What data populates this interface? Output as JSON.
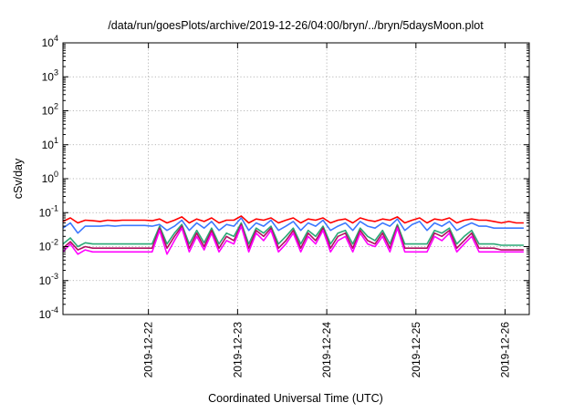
{
  "chart_data": {
    "type": "line",
    "title": "/data/run/goesPlots/archive/2019-12-26/04:00/bryn/../bryn/5daysMoon.plot",
    "xlabel": "Coordinated Universal Time (UTC)",
    "ylabel": "cSv/day",
    "yscale": "log",
    "ylim": [
      0.0001,
      10000
    ],
    "xlim": [
      "2019-12-21T01:00",
      "2019-12-26T06:30"
    ],
    "y_ticks": [
      {
        "value": 0.0001,
        "base": "10",
        "exp": "-4"
      },
      {
        "value": 0.001,
        "base": "10",
        "exp": "-3"
      },
      {
        "value": 0.01,
        "base": "10",
        "exp": "-2"
      },
      {
        "value": 0.1,
        "base": "10",
        "exp": "-1"
      },
      {
        "value": 1,
        "base": "10",
        "exp": "0"
      },
      {
        "value": 10,
        "base": "10",
        "exp": "1"
      },
      {
        "value": 100,
        "base": "10",
        "exp": "2"
      },
      {
        "value": 1000,
        "base": "10",
        "exp": "3"
      },
      {
        "value": 10000,
        "base": "10",
        "exp": "4"
      }
    ],
    "x_ticks": [
      "2019-12-22",
      "2019-12-23",
      "2019-12-24",
      "2019-12-25",
      "2019-12-26"
    ],
    "grid": true,
    "legend": "none",
    "series": [
      {
        "color": "#ff0000",
        "x": [
          "2019-12-21T01:00",
          "2019-12-21T03:00",
          "2019-12-21T05:00",
          "2019-12-21T07:00",
          "2019-12-21T09:00",
          "2019-12-21T11:00",
          "2019-12-21T13:00",
          "2019-12-21T15:00",
          "2019-12-21T17:00",
          "2019-12-21T19:00",
          "2019-12-21T21:00",
          "2019-12-21T23:00",
          "2019-12-22T01:00",
          "2019-12-22T03:00",
          "2019-12-22T05:00",
          "2019-12-22T07:00",
          "2019-12-22T09:00",
          "2019-12-22T11:00",
          "2019-12-22T13:00",
          "2019-12-22T15:00",
          "2019-12-22T17:00",
          "2019-12-22T19:00",
          "2019-12-22T21:00",
          "2019-12-22T23:00",
          "2019-12-23T01:00",
          "2019-12-23T03:00",
          "2019-12-23T05:00",
          "2019-12-23T07:00",
          "2019-12-23T09:00",
          "2019-12-23T11:00",
          "2019-12-23T13:00",
          "2019-12-23T15:00",
          "2019-12-23T17:00",
          "2019-12-23T19:00",
          "2019-12-23T21:00",
          "2019-12-23T23:00",
          "2019-12-24T01:00",
          "2019-12-24T03:00",
          "2019-12-24T05:00",
          "2019-12-24T07:00",
          "2019-12-24T09:00",
          "2019-12-24T11:00",
          "2019-12-24T13:00",
          "2019-12-24T15:00",
          "2019-12-24T17:00",
          "2019-12-24T19:00",
          "2019-12-24T21:00",
          "2019-12-24T23:00",
          "2019-12-25T01:00",
          "2019-12-25T03:00",
          "2019-12-25T05:00",
          "2019-12-25T07:00",
          "2019-12-25T09:00",
          "2019-12-25T11:00",
          "2019-12-25T13:00",
          "2019-12-25T15:00",
          "2019-12-25T17:00",
          "2019-12-25T19:00",
          "2019-12-25T21:00",
          "2019-12-25T23:00",
          "2019-12-26T01:00",
          "2019-12-26T03:00",
          "2019-12-26T05:00"
        ],
        "values": [
          0.055,
          0.07,
          0.05,
          0.06,
          0.058,
          0.055,
          0.06,
          0.058,
          0.06,
          0.06,
          0.06,
          0.06,
          0.058,
          0.065,
          0.05,
          0.06,
          0.075,
          0.05,
          0.065,
          0.055,
          0.07,
          0.05,
          0.06,
          0.06,
          0.08,
          0.05,
          0.065,
          0.06,
          0.07,
          0.05,
          0.06,
          0.07,
          0.05,
          0.065,
          0.06,
          0.07,
          0.05,
          0.06,
          0.065,
          0.05,
          0.07,
          0.06,
          0.055,
          0.065,
          0.06,
          0.075,
          0.05,
          0.06,
          0.07,
          0.05,
          0.065,
          0.06,
          0.07,
          0.05,
          0.06,
          0.065,
          0.06,
          0.06,
          0.055,
          0.05,
          0.055,
          0.05,
          0.05
        ]
      },
      {
        "color": "#3c78ff",
        "x": [
          "2019-12-21T01:00",
          "2019-12-21T03:00",
          "2019-12-21T05:00",
          "2019-12-21T07:00",
          "2019-12-21T09:00",
          "2019-12-21T11:00",
          "2019-12-21T13:00",
          "2019-12-21T15:00",
          "2019-12-21T17:00",
          "2019-12-21T19:00",
          "2019-12-21T21:00",
          "2019-12-21T23:00",
          "2019-12-22T01:00",
          "2019-12-22T03:00",
          "2019-12-22T05:00",
          "2019-12-22T07:00",
          "2019-12-22T09:00",
          "2019-12-22T11:00",
          "2019-12-22T13:00",
          "2019-12-22T15:00",
          "2019-12-22T17:00",
          "2019-12-22T19:00",
          "2019-12-22T21:00",
          "2019-12-22T23:00",
          "2019-12-23T01:00",
          "2019-12-23T03:00",
          "2019-12-23T05:00",
          "2019-12-23T07:00",
          "2019-12-23T09:00",
          "2019-12-23T11:00",
          "2019-12-23T13:00",
          "2019-12-23T15:00",
          "2019-12-23T17:00",
          "2019-12-23T19:00",
          "2019-12-23T21:00",
          "2019-12-23T23:00",
          "2019-12-24T01:00",
          "2019-12-24T03:00",
          "2019-12-24T05:00",
          "2019-12-24T07:00",
          "2019-12-24T09:00",
          "2019-12-24T11:00",
          "2019-12-24T13:00",
          "2019-12-24T15:00",
          "2019-12-24T17:00",
          "2019-12-24T19:00",
          "2019-12-24T21:00",
          "2019-12-24T23:00",
          "2019-12-25T01:00",
          "2019-12-25T03:00",
          "2019-12-25T05:00",
          "2019-12-25T07:00",
          "2019-12-25T09:00",
          "2019-12-25T11:00",
          "2019-12-25T13:00",
          "2019-12-25T15:00",
          "2019-12-25T17:00",
          "2019-12-25T19:00",
          "2019-12-25T21:00",
          "2019-12-25T23:00",
          "2019-12-26T01:00",
          "2019-12-26T03:00",
          "2019-12-26T05:00"
        ],
        "values": [
          0.035,
          0.05,
          0.025,
          0.04,
          0.04,
          0.04,
          0.042,
          0.04,
          0.042,
          0.042,
          0.042,
          0.042,
          0.04,
          0.045,
          0.03,
          0.04,
          0.06,
          0.03,
          0.05,
          0.035,
          0.055,
          0.03,
          0.045,
          0.04,
          0.07,
          0.03,
          0.05,
          0.04,
          0.06,
          0.03,
          0.04,
          0.055,
          0.03,
          0.05,
          0.04,
          0.06,
          0.03,
          0.04,
          0.05,
          0.03,
          0.055,
          0.04,
          0.035,
          0.05,
          0.04,
          0.065,
          0.03,
          0.045,
          0.055,
          0.03,
          0.05,
          0.04,
          0.055,
          0.03,
          0.04,
          0.05,
          0.04,
          0.04,
          0.035,
          0.035,
          0.035,
          0.035,
          0.035
        ]
      },
      {
        "color": "#2aa876",
        "x": [
          "2019-12-21T01:00",
          "2019-12-21T03:00",
          "2019-12-21T05:00",
          "2019-12-21T07:00",
          "2019-12-21T09:00",
          "2019-12-21T11:00",
          "2019-12-21T13:00",
          "2019-12-21T15:00",
          "2019-12-21T17:00",
          "2019-12-21T19:00",
          "2019-12-21T21:00",
          "2019-12-21T23:00",
          "2019-12-22T01:00",
          "2019-12-22T03:00",
          "2019-12-22T05:00",
          "2019-12-22T07:00",
          "2019-12-22T09:00",
          "2019-12-22T11:00",
          "2019-12-22T13:00",
          "2019-12-22T15:00",
          "2019-12-22T17:00",
          "2019-12-22T19:00",
          "2019-12-22T21:00",
          "2019-12-22T23:00",
          "2019-12-23T01:00",
          "2019-12-23T03:00",
          "2019-12-23T05:00",
          "2019-12-23T07:00",
          "2019-12-23T09:00",
          "2019-12-23T11:00",
          "2019-12-23T13:00",
          "2019-12-23T15:00",
          "2019-12-23T17:00",
          "2019-12-23T19:00",
          "2019-12-23T21:00",
          "2019-12-23T23:00",
          "2019-12-24T01:00",
          "2019-12-24T03:00",
          "2019-12-24T05:00",
          "2019-12-24T07:00",
          "2019-12-24T09:00",
          "2019-12-24T11:00",
          "2019-12-24T13:00",
          "2019-12-24T15:00",
          "2019-12-24T17:00",
          "2019-12-24T19:00",
          "2019-12-24T21:00",
          "2019-12-24T23:00",
          "2019-12-25T01:00",
          "2019-12-25T03:00",
          "2019-12-25T05:00",
          "2019-12-25T07:00",
          "2019-12-25T09:00",
          "2019-12-25T11:00",
          "2019-12-25T13:00",
          "2019-12-25T15:00",
          "2019-12-25T17:00",
          "2019-12-25T19:00",
          "2019-12-25T21:00",
          "2019-12-25T23:00",
          "2019-12-26T01:00",
          "2019-12-26T03:00",
          "2019-12-26T05:00"
        ],
        "values": [
          0.012,
          0.018,
          0.01,
          0.013,
          0.012,
          0.012,
          0.012,
          0.012,
          0.012,
          0.012,
          0.012,
          0.012,
          0.012,
          0.04,
          0.012,
          0.025,
          0.045,
          0.012,
          0.03,
          0.013,
          0.035,
          0.012,
          0.025,
          0.02,
          0.05,
          0.012,
          0.035,
          0.025,
          0.04,
          0.012,
          0.02,
          0.035,
          0.012,
          0.03,
          0.02,
          0.04,
          0.012,
          0.025,
          0.03,
          0.012,
          0.035,
          0.02,
          0.015,
          0.03,
          0.012,
          0.045,
          0.012,
          0.012,
          0.012,
          0.012,
          0.03,
          0.025,
          0.035,
          0.012,
          0.02,
          0.03,
          0.012,
          0.012,
          0.012,
          0.011,
          0.011,
          0.011,
          0.011
        ]
      },
      {
        "color": "#b01060",
        "x": [
          "2019-12-21T01:00",
          "2019-12-21T03:00",
          "2019-12-21T05:00",
          "2019-12-21T07:00",
          "2019-12-21T09:00",
          "2019-12-21T11:00",
          "2019-12-21T13:00",
          "2019-12-21T15:00",
          "2019-12-21T17:00",
          "2019-12-21T19:00",
          "2019-12-21T21:00",
          "2019-12-21T23:00",
          "2019-12-22T01:00",
          "2019-12-22T03:00",
          "2019-12-22T05:00",
          "2019-12-22T07:00",
          "2019-12-22T09:00",
          "2019-12-22T11:00",
          "2019-12-22T13:00",
          "2019-12-22T15:00",
          "2019-12-22T17:00",
          "2019-12-22T19:00",
          "2019-12-22T21:00",
          "2019-12-22T23:00",
          "2019-12-23T01:00",
          "2019-12-23T03:00",
          "2019-12-23T05:00",
          "2019-12-23T07:00",
          "2019-12-23T09:00",
          "2019-12-23T11:00",
          "2019-12-23T13:00",
          "2019-12-23T15:00",
          "2019-12-23T17:00",
          "2019-12-23T19:00",
          "2019-12-23T21:00",
          "2019-12-23T23:00",
          "2019-12-24T01:00",
          "2019-12-24T03:00",
          "2019-12-24T05:00",
          "2019-12-24T07:00",
          "2019-12-24T09:00",
          "2019-12-24T11:00",
          "2019-12-24T13:00",
          "2019-12-24T15:00",
          "2019-12-24T17:00",
          "2019-12-24T19:00",
          "2019-12-24T21:00",
          "2019-12-24T23:00",
          "2019-12-25T01:00",
          "2019-12-25T03:00",
          "2019-12-25T05:00",
          "2019-12-25T07:00",
          "2019-12-25T09:00",
          "2019-12-25T11:00",
          "2019-12-25T13:00",
          "2019-12-25T15:00",
          "2019-12-25T17:00",
          "2019-12-25T19:00",
          "2019-12-25T21:00",
          "2019-12-25T23:00",
          "2019-12-26T01:00",
          "2019-12-26T03:00",
          "2019-12-26T05:00"
        ],
        "values": [
          0.009,
          0.014,
          0.008,
          0.01,
          0.009,
          0.009,
          0.009,
          0.009,
          0.009,
          0.009,
          0.009,
          0.009,
          0.009,
          0.035,
          0.009,
          0.02,
          0.04,
          0.009,
          0.025,
          0.01,
          0.03,
          0.009,
          0.02,
          0.015,
          0.045,
          0.009,
          0.03,
          0.02,
          0.035,
          0.009,
          0.015,
          0.03,
          0.009,
          0.025,
          0.015,
          0.035,
          0.009,
          0.02,
          0.025,
          0.009,
          0.03,
          0.015,
          0.012,
          0.025,
          0.009,
          0.04,
          0.009,
          0.009,
          0.009,
          0.009,
          0.025,
          0.02,
          0.03,
          0.009,
          0.015,
          0.025,
          0.009,
          0.009,
          0.009,
          0.008,
          0.008,
          0.008,
          0.008
        ]
      },
      {
        "color": "#ff00ff",
        "x": [
          "2019-12-21T01:00",
          "2019-12-21T03:00",
          "2019-12-21T05:00",
          "2019-12-21T07:00",
          "2019-12-21T09:00",
          "2019-12-21T11:00",
          "2019-12-21T13:00",
          "2019-12-21T15:00",
          "2019-12-21T17:00",
          "2019-12-21T19:00",
          "2019-12-21T21:00",
          "2019-12-21T23:00",
          "2019-12-22T01:00",
          "2019-12-22T03:00",
          "2019-12-22T05:00",
          "2019-12-22T07:00",
          "2019-12-22T09:00",
          "2019-12-22T11:00",
          "2019-12-22T13:00",
          "2019-12-22T15:00",
          "2019-12-22T17:00",
          "2019-12-22T19:00",
          "2019-12-22T21:00",
          "2019-12-22T23:00",
          "2019-12-23T01:00",
          "2019-12-23T03:00",
          "2019-12-23T05:00",
          "2019-12-23T07:00",
          "2019-12-23T09:00",
          "2019-12-23T11:00",
          "2019-12-23T13:00",
          "2019-12-23T15:00",
          "2019-12-23T17:00",
          "2019-12-23T19:00",
          "2019-12-23T21:00",
          "2019-12-23T23:00",
          "2019-12-24T01:00",
          "2019-12-24T03:00",
          "2019-12-24T05:00",
          "2019-12-24T07:00",
          "2019-12-24T09:00",
          "2019-12-24T11:00",
          "2019-12-24T13:00",
          "2019-12-24T15:00",
          "2019-12-24T17:00",
          "2019-12-24T19:00",
          "2019-12-24T21:00",
          "2019-12-24T23:00",
          "2019-12-25T01:00",
          "2019-12-25T03:00",
          "2019-12-25T05:00",
          "2019-12-25T07:00",
          "2019-12-25T09:00",
          "2019-12-25T11:00",
          "2019-12-25T13:00",
          "2019-12-25T15:00",
          "2019-12-25T17:00",
          "2019-12-25T19:00",
          "2019-12-25T21:00",
          "2019-12-25T23:00",
          "2019-12-26T01:00",
          "2019-12-26T03:00",
          "2019-12-26T05:00"
        ],
        "values": [
          0.007,
          0.012,
          0.006,
          0.008,
          0.007,
          0.007,
          0.007,
          0.007,
          0.007,
          0.007,
          0.007,
          0.007,
          0.007,
          0.03,
          0.006,
          0.015,
          0.035,
          0.007,
          0.02,
          0.008,
          0.025,
          0.007,
          0.015,
          0.012,
          0.04,
          0.007,
          0.025,
          0.015,
          0.03,
          0.007,
          0.012,
          0.025,
          0.007,
          0.02,
          0.012,
          0.03,
          0.007,
          0.015,
          0.02,
          0.007,
          0.025,
          0.012,
          0.01,
          0.02,
          0.007,
          0.035,
          0.007,
          0.007,
          0.007,
          0.007,
          0.02,
          0.015,
          0.025,
          0.007,
          0.012,
          0.02,
          0.007,
          0.007,
          0.007,
          0.007,
          0.007,
          0.007,
          0.007
        ]
      }
    ]
  }
}
